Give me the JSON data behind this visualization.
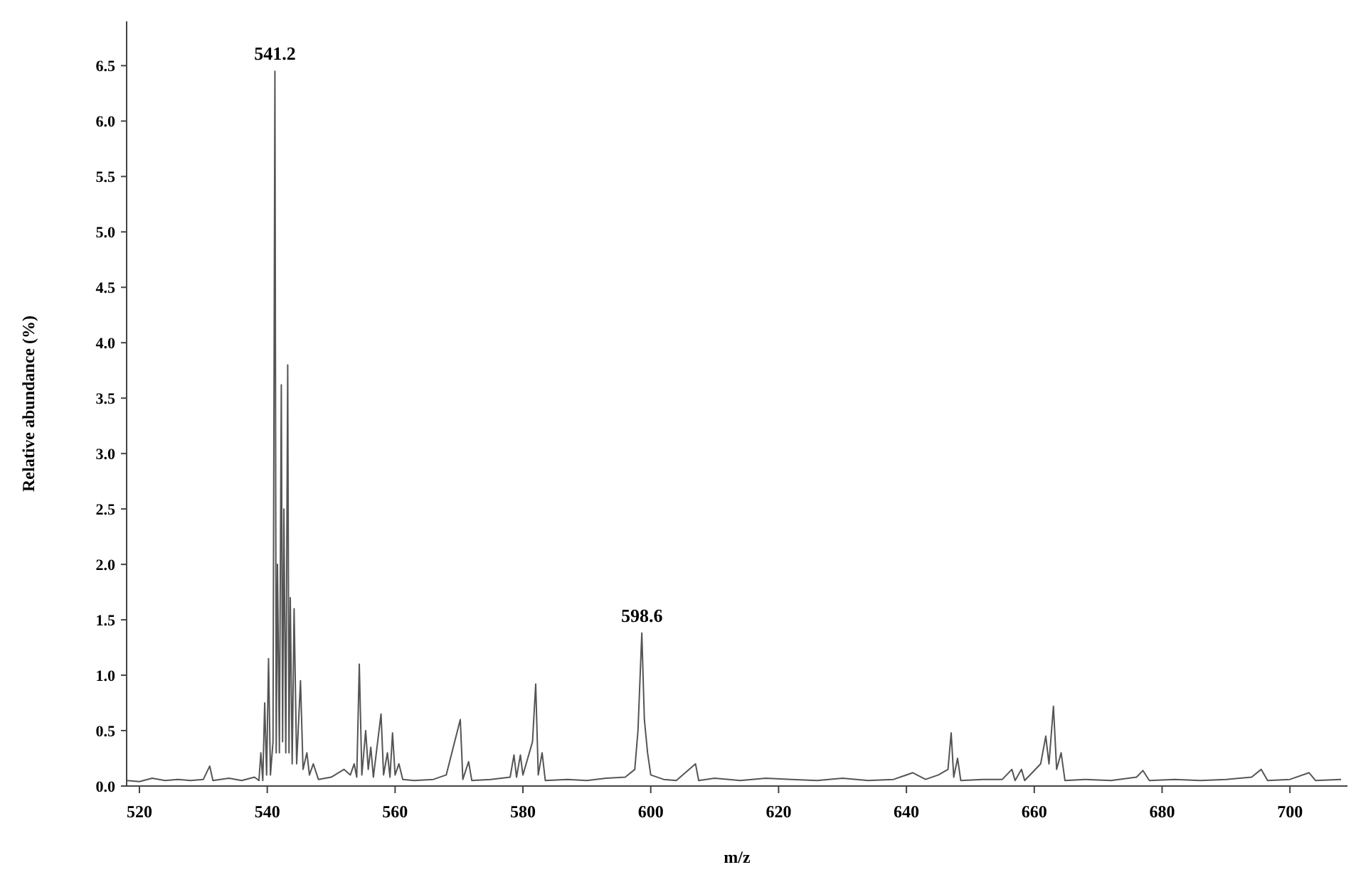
{
  "chart_data": {
    "type": "line",
    "xlabel": "m/z",
    "ylabel": "Relative abundance (%)",
    "x": [
      518,
      520,
      522,
      524,
      526,
      528,
      530,
      531,
      531.5,
      534,
      536,
      538,
      538.7,
      539.0,
      539.3,
      539.6,
      539.9,
      540.2,
      540.5,
      540.9,
      541.2,
      541.4,
      541.6,
      541.9,
      542.2,
      542.4,
      542.6,
      542.9,
      543.2,
      543.4,
      543.6,
      543.9,
      544.2,
      544.6,
      545.2,
      545.6,
      546.2,
      546.6,
      547.2,
      548,
      550,
      552,
      553,
      553.6,
      554,
      554.4,
      554.8,
      555.4,
      555.8,
      556.2,
      556.6,
      557.8,
      558.2,
      558.8,
      559.2,
      559.6,
      560,
      560.6,
      561.2,
      563,
      566,
      568,
      570.2,
      570.6,
      571.5,
      572,
      575,
      578,
      578.6,
      579,
      579.6,
      580,
      581.5,
      582,
      582.4,
      583,
      583.5,
      587,
      590,
      593,
      596,
      597.5,
      598,
      598.6,
      599,
      599.5,
      600,
      602,
      604,
      607,
      607.5,
      610,
      614,
      618,
      622,
      626,
      630,
      634,
      638,
      641,
      643,
      645,
      646.5,
      647,
      647.4,
      648,
      648.5,
      652,
      655,
      656.5,
      657,
      658,
      658.5,
      661,
      661.8,
      662.3,
      663,
      663.5,
      664.2,
      664.8,
      668,
      672,
      676,
      677,
      678,
      682,
      686,
      690,
      694,
      695.5,
      696.5,
      700,
      703,
      704,
      708
    ],
    "series": [
      {
        "color": "#555555",
        "values": [
          0.05,
          0.04,
          0.07,
          0.05,
          0.06,
          0.05,
          0.06,
          0.18,
          0.05,
          0.07,
          0.05,
          0.08,
          0.05,
          0.3,
          0.05,
          0.75,
          0.1,
          1.15,
          0.1,
          0.4,
          6.45,
          0.3,
          2.0,
          0.3,
          3.62,
          0.4,
          2.5,
          0.3,
          3.8,
          0.3,
          1.7,
          0.2,
          1.6,
          0.2,
          0.95,
          0.15,
          0.3,
          0.1,
          0.2,
          0.06,
          0.08,
          0.15,
          0.1,
          0.2,
          0.08,
          1.1,
          0.1,
          0.5,
          0.15,
          0.35,
          0.08,
          0.65,
          0.1,
          0.3,
          0.08,
          0.48,
          0.1,
          0.2,
          0.06,
          0.05,
          0.06,
          0.1,
          0.6,
          0.06,
          0.22,
          0.05,
          0.06,
          0.08,
          0.28,
          0.08,
          0.28,
          0.1,
          0.4,
          0.92,
          0.1,
          0.3,
          0.05,
          0.06,
          0.05,
          0.07,
          0.08,
          0.15,
          0.5,
          1.38,
          0.6,
          0.3,
          0.1,
          0.06,
          0.05,
          0.2,
          0.05,
          0.07,
          0.05,
          0.07,
          0.06,
          0.05,
          0.07,
          0.05,
          0.06,
          0.12,
          0.06,
          0.1,
          0.15,
          0.48,
          0.08,
          0.25,
          0.05,
          0.06,
          0.06,
          0.15,
          0.05,
          0.15,
          0.05,
          0.2,
          0.45,
          0.2,
          0.72,
          0.15,
          0.3,
          0.05,
          0.06,
          0.05,
          0.08,
          0.14,
          0.05,
          0.06,
          0.05,
          0.06,
          0.08,
          0.15,
          0.05,
          0.06,
          0.12,
          0.05,
          0.06
        ]
      }
    ],
    "xlim": [
      518,
      709
    ],
    "xticks": [
      520,
      540,
      560,
      580,
      600,
      620,
      640,
      660,
      680,
      700
    ],
    "ylim": [
      0,
      6.9
    ],
    "yticks": [
      {
        "value": 0,
        "label": "0.0"
      },
      {
        "value": 0.5,
        "label": "0.5"
      },
      {
        "value": 1,
        "label": "1.0"
      },
      {
        "value": 1.5,
        "label": "1.5"
      },
      {
        "value": 2,
        "label": "2.0"
      },
      {
        "value": 2.5,
        "label": "2.5"
      },
      {
        "value": 3,
        "label": "3.0"
      },
      {
        "value": 3.5,
        "label": "3.5"
      },
      {
        "value": 4,
        "label": "4.0"
      },
      {
        "value": 4.5,
        "label": "4.5"
      },
      {
        "value": 5,
        "label": "5.0"
      },
      {
        "value": 5.5,
        "label": "5.5"
      },
      {
        "value": 6,
        "label": "6.0"
      },
      {
        "value": 6.5,
        "label": "6.5"
      }
    ],
    "annotations": [
      {
        "text": "541.2",
        "x": 541.2,
        "y": 6.45
      },
      {
        "text": "598.6",
        "x": 598.6,
        "y": 1.38
      }
    ],
    "marker": "none",
    "line_style": "solid"
  }
}
